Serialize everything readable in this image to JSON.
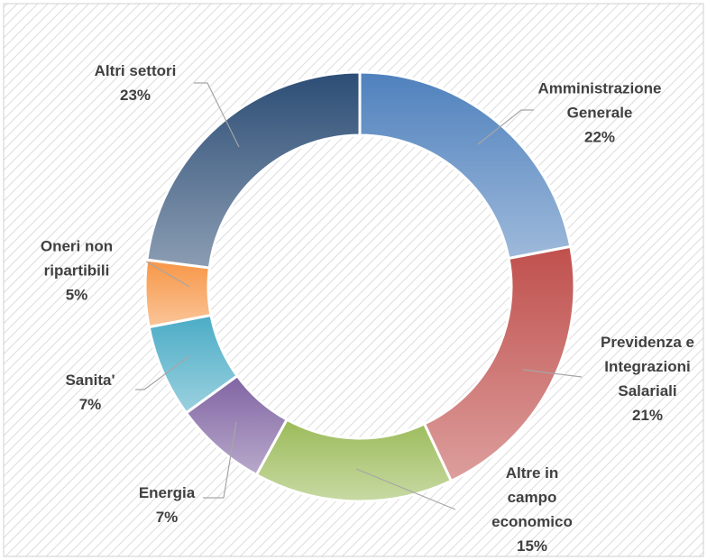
{
  "chart_data": {
    "type": "donut",
    "categories": [
      "Amministrazione Generale",
      "Previdenza e Integrazioni Salariali",
      "Altre in campo economico",
      "Energia",
      "Sanita'",
      "Oneri non ripartibili",
      "Altri settori"
    ],
    "values": [
      22,
      21,
      15,
      7,
      7,
      5,
      23
    ],
    "value_labels": [
      "22%",
      "21%",
      "15%",
      "7%",
      "7%",
      "5%",
      "23%"
    ],
    "colors": [
      "#4f81bd",
      "#c0504d",
      "#9bbb59",
      "#8064a2",
      "#4bacc6",
      "#f79646",
      "#2c4d75"
    ]
  }
}
